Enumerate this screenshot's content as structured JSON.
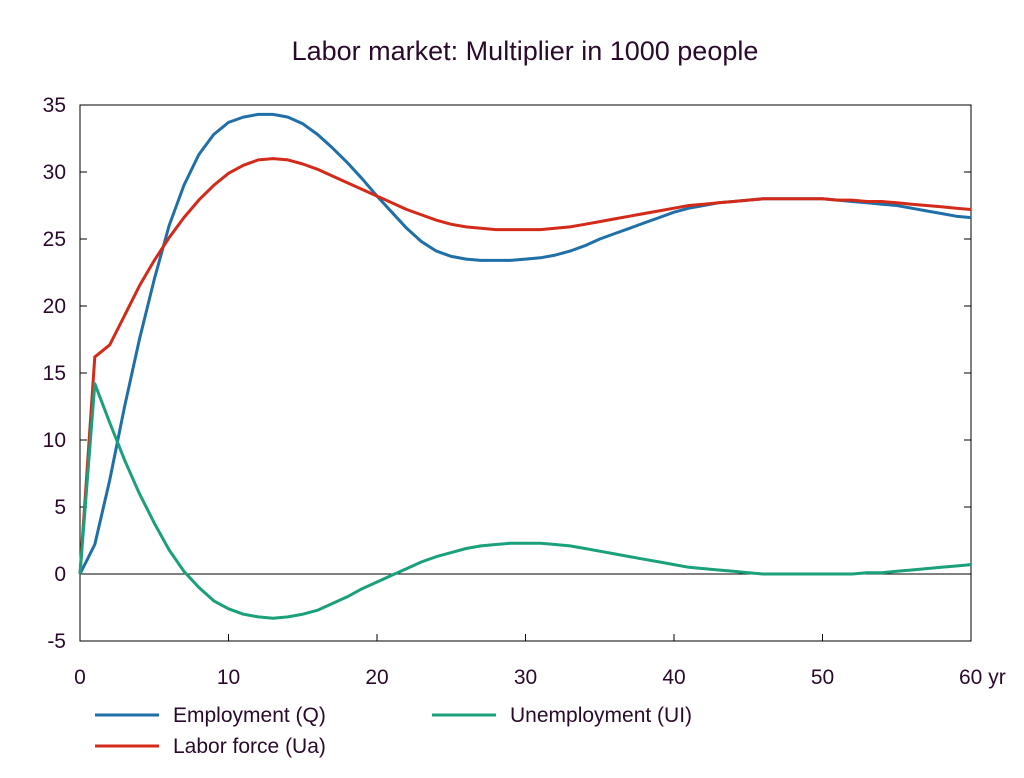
{
  "chart_data": {
    "type": "line",
    "title": "Labor market: Multiplier in 1000 people",
    "xlabel": "",
    "ylabel": "",
    "xlim": [
      0,
      60
    ],
    "ylim": [
      -5,
      35
    ],
    "x_ticks": [
      0,
      10,
      20,
      30,
      40,
      50,
      60
    ],
    "x_tick_labels": [
      "0",
      "10",
      "20",
      "30",
      "40",
      "50",
      "60 yr"
    ],
    "y_ticks": [
      -5,
      0,
      5,
      10,
      15,
      20,
      25,
      30,
      35
    ],
    "y_tick_labels": [
      "-5",
      "0",
      "5",
      "10",
      "15",
      "20",
      "25",
      "30",
      "35"
    ],
    "grid": false,
    "zero_line": true,
    "legend_position": "bottom",
    "series": [
      {
        "name": "Employment (Q)",
        "color": "#1f6fa8",
        "x": [
          0,
          1,
          2,
          3,
          4,
          5,
          6,
          7,
          8,
          9,
          10,
          11,
          12,
          13,
          14,
          15,
          16,
          17,
          18,
          19,
          20,
          21,
          22,
          23,
          24,
          25,
          26,
          27,
          28,
          29,
          30,
          31,
          32,
          33,
          34,
          35,
          36,
          37,
          38,
          39,
          40,
          41,
          42,
          43,
          44,
          45,
          46,
          47,
          48,
          49,
          50,
          51,
          52,
          53,
          54,
          55,
          56,
          57,
          58,
          59,
          60
        ],
        "y": [
          0,
          2.2,
          7,
          12.5,
          17.5,
          22,
          26,
          29,
          31.3,
          32.8,
          33.7,
          34.1,
          34.3,
          34.3,
          34.1,
          33.6,
          32.8,
          31.8,
          30.7,
          29.5,
          28.2,
          27,
          25.8,
          24.8,
          24.1,
          23.7,
          23.5,
          23.4,
          23.4,
          23.4,
          23.5,
          23.6,
          23.8,
          24.1,
          24.5,
          25,
          25.4,
          25.8,
          26.2,
          26.6,
          27,
          27.3,
          27.5,
          27.7,
          27.8,
          27.9,
          28,
          28,
          28,
          28,
          28,
          27.9,
          27.8,
          27.7,
          27.6,
          27.5,
          27.3,
          27.1,
          26.9,
          26.7,
          26.6
        ]
      },
      {
        "name": "Labor force (Ua)",
        "color": "#d42a1a",
        "x": [
          0,
          1,
          2,
          3,
          4,
          5,
          6,
          7,
          8,
          9,
          10,
          11,
          12,
          13,
          14,
          15,
          16,
          17,
          18,
          19,
          20,
          21,
          22,
          23,
          24,
          25,
          26,
          27,
          28,
          29,
          30,
          31,
          32,
          33,
          34,
          35,
          36,
          37,
          38,
          39,
          40,
          41,
          42,
          43,
          44,
          45,
          46,
          47,
          48,
          49,
          50,
          51,
          52,
          53,
          54,
          55,
          56,
          57,
          58,
          59,
          60
        ],
        "y": [
          0,
          16.2,
          17.1,
          19.3,
          21.5,
          23.4,
          25.1,
          26.6,
          27.9,
          29,
          29.9,
          30.5,
          30.9,
          31,
          30.9,
          30.6,
          30.2,
          29.7,
          29.2,
          28.7,
          28.2,
          27.7,
          27.2,
          26.8,
          26.4,
          26.1,
          25.9,
          25.8,
          25.7,
          25.7,
          25.7,
          25.7,
          25.8,
          25.9,
          26.1,
          26.3,
          26.5,
          26.7,
          26.9,
          27.1,
          27.3,
          27.5,
          27.6,
          27.7,
          27.8,
          27.9,
          28,
          28,
          28,
          28,
          28,
          27.9,
          27.9,
          27.8,
          27.8,
          27.7,
          27.6,
          27.5,
          27.4,
          27.3,
          27.2
        ]
      },
      {
        "name": "Unemployment (UI)",
        "color": "#1aa07a",
        "x": [
          0,
          1,
          2,
          3,
          4,
          5,
          6,
          7,
          8,
          9,
          10,
          11,
          12,
          13,
          14,
          15,
          16,
          17,
          18,
          19,
          20,
          21,
          22,
          23,
          24,
          25,
          26,
          27,
          28,
          29,
          30,
          31,
          32,
          33,
          34,
          35,
          36,
          37,
          38,
          39,
          40,
          41,
          42,
          43,
          44,
          45,
          46,
          47,
          48,
          49,
          50,
          51,
          52,
          53,
          54,
          55,
          56,
          57,
          58,
          59,
          60
        ],
        "y": [
          0,
          14.2,
          11.3,
          8.5,
          6,
          3.8,
          1.8,
          0.2,
          -1,
          -2,
          -2.6,
          -3,
          -3.2,
          -3.3,
          -3.2,
          -3,
          -2.7,
          -2.2,
          -1.7,
          -1.1,
          -0.6,
          -0.1,
          0.4,
          0.9,
          1.3,
          1.6,
          1.9,
          2.1,
          2.2,
          2.3,
          2.3,
          2.3,
          2.2,
          2.1,
          1.9,
          1.7,
          1.5,
          1.3,
          1.1,
          0.9,
          0.7,
          0.5,
          0.4,
          0.3,
          0.2,
          0.1,
          0,
          0,
          0,
          0,
          0,
          0,
          0,
          0.1,
          0.1,
          0.2,
          0.3,
          0.4,
          0.5,
          0.6,
          0.7
        ]
      }
    ]
  }
}
